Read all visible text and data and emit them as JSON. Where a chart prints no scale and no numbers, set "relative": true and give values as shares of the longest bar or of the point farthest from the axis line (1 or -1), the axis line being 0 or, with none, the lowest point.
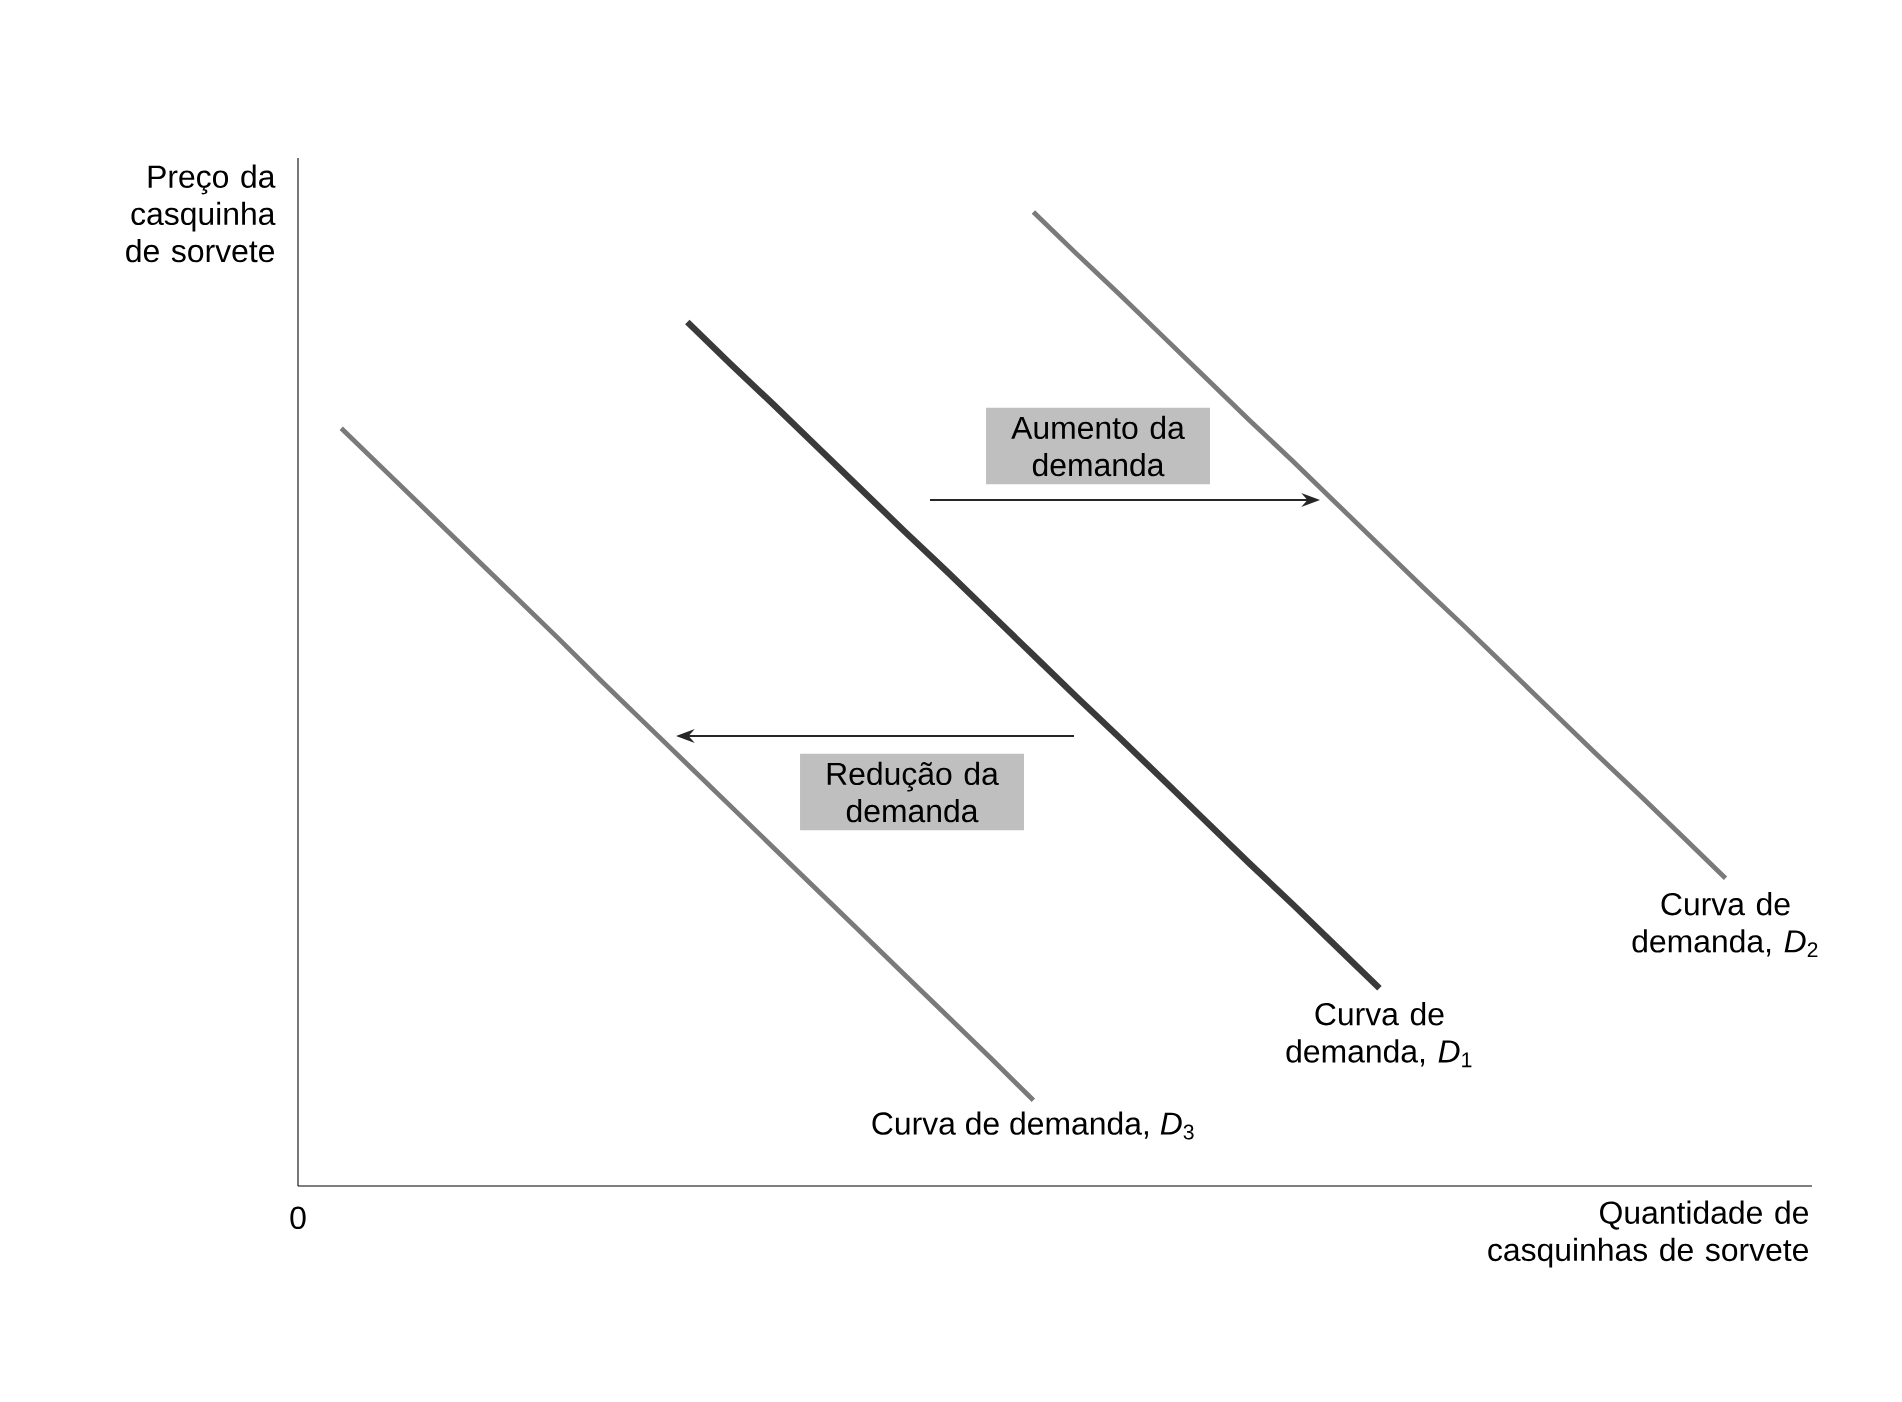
{
  "chart_data": {
    "type": "line",
    "relative": true,
    "ylabel": "Preço da casquinha de sorvete",
    "xlabel": "Quantidade de casquinhas de sorvete",
    "categories": [
      null,
      null,
      null,
      null,
      null,
      null,
      null,
      null,
      null,
      null,
      null,
      null,
      null,
      null,
      null,
      null,
      null,
      null,
      null,
      null,
      null,
      null,
      null,
      null,
      null,
      null,
      null,
      null,
      null,
      null,
      null,
      null,
      null,
      null,
      null,
      null
    ],
    "series": [
      {
        "name": "Curva de demanda, *D*$_{1}$",
        "color": "#3a3a3a",
        "values": [
          null,
          null,
          null,
          null,
          null,
          null,
          null,
          null,
          null,
          0.887,
          0.844,
          0.802,
          0.759,
          0.716,
          0.673,
          0.631,
          0.588,
          0.545,
          0.502,
          0.46,
          0.417,
          0.374,
          0.331,
          0.289,
          0.246,
          0.203,
          null,
          null,
          null,
          null,
          null,
          null,
          null,
          null,
          null,
          null
        ]
      },
      {
        "name": "Curva de demanda, *D*$_{2}$",
        "color": "#7a7a7a",
        "values": [
          null,
          null,
          null,
          null,
          null,
          null,
          null,
          null,
          null,
          null,
          null,
          null,
          null,
          null,
          null,
          null,
          null,
          1,
          0.957,
          0.915,
          0.872,
          0.829,
          0.786,
          0.744,
          0.701,
          0.658,
          0.615,
          0.573,
          0.53,
          0.487,
          0.444,
          0.402,
          0.359,
          0.316,
          null,
          null
        ]
      },
      {
        "name": "Curva de demanda, *D*$_{3}$",
        "color": "#7a7a7a",
        "values": [
          null,
          0.778,
          0.735,
          0.692,
          0.649,
          0.606,
          0.563,
          0.519,
          0.476,
          0.433,
          0.39,
          0.347,
          0.304,
          0.261,
          0.218,
          0.175,
          0.132,
          0.088,
          null,
          null,
          null,
          null,
          null,
          null,
          null,
          null,
          null,
          null,
          null,
          null,
          null,
          null,
          null,
          null,
          null,
          null
        ]
      }
    ],
    "annotations": [
      "Aumento da demanda",
      "Redução da demanda",
      "0"
    ]
  }
}
